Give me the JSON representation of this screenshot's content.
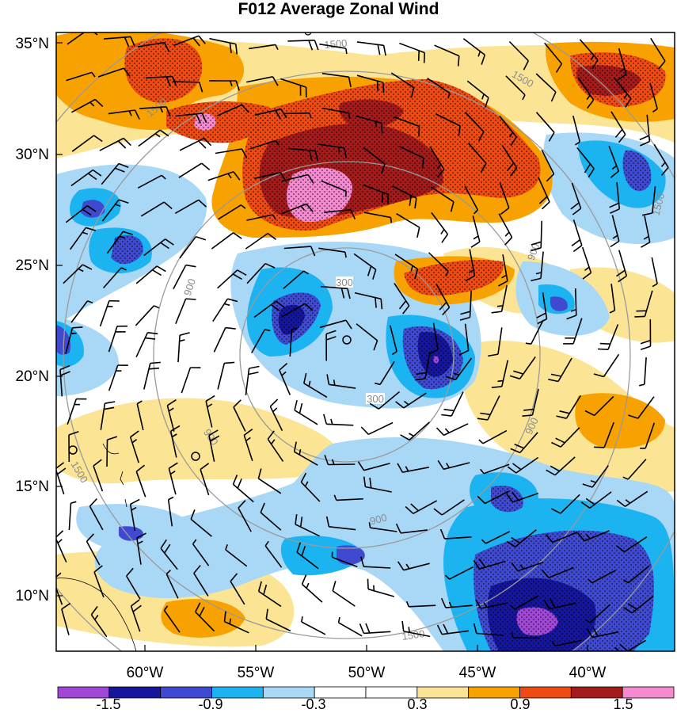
{
  "title": "F012 Average Zonal Wind",
  "map": {
    "lat_ticks": [
      "35°N",
      "30°N",
      "25°N",
      "20°N",
      "15°N",
      "10°N"
    ],
    "lon_ticks": [
      "60°W",
      "55°W",
      "50°W",
      "45°W",
      "40°W"
    ],
    "range_ring_labels": [
      "300",
      "300",
      "900",
      "900",
      "900",
      "900",
      "900",
      "1500",
      "1500",
      "1500",
      "1500",
      "1500",
      "1500"
    ]
  },
  "colorbar": {
    "labels": [
      "-1.5",
      "-0.9",
      "-0.3",
      "0.3",
      "0.9",
      "1.5"
    ],
    "colors": [
      "#a047d8",
      "#16169c",
      "#3f4ad0",
      "#1cb4f0",
      "#a9d8f7",
      "#ffffff",
      "#ffffff",
      "#fbe494",
      "#f7a200",
      "#ee4a13",
      "#a31b1b",
      "#f58ad0"
    ]
  },
  "colors": {
    "ring": "#9a9a9a",
    "barb": "#000000",
    "frame": "#000000"
  }
}
